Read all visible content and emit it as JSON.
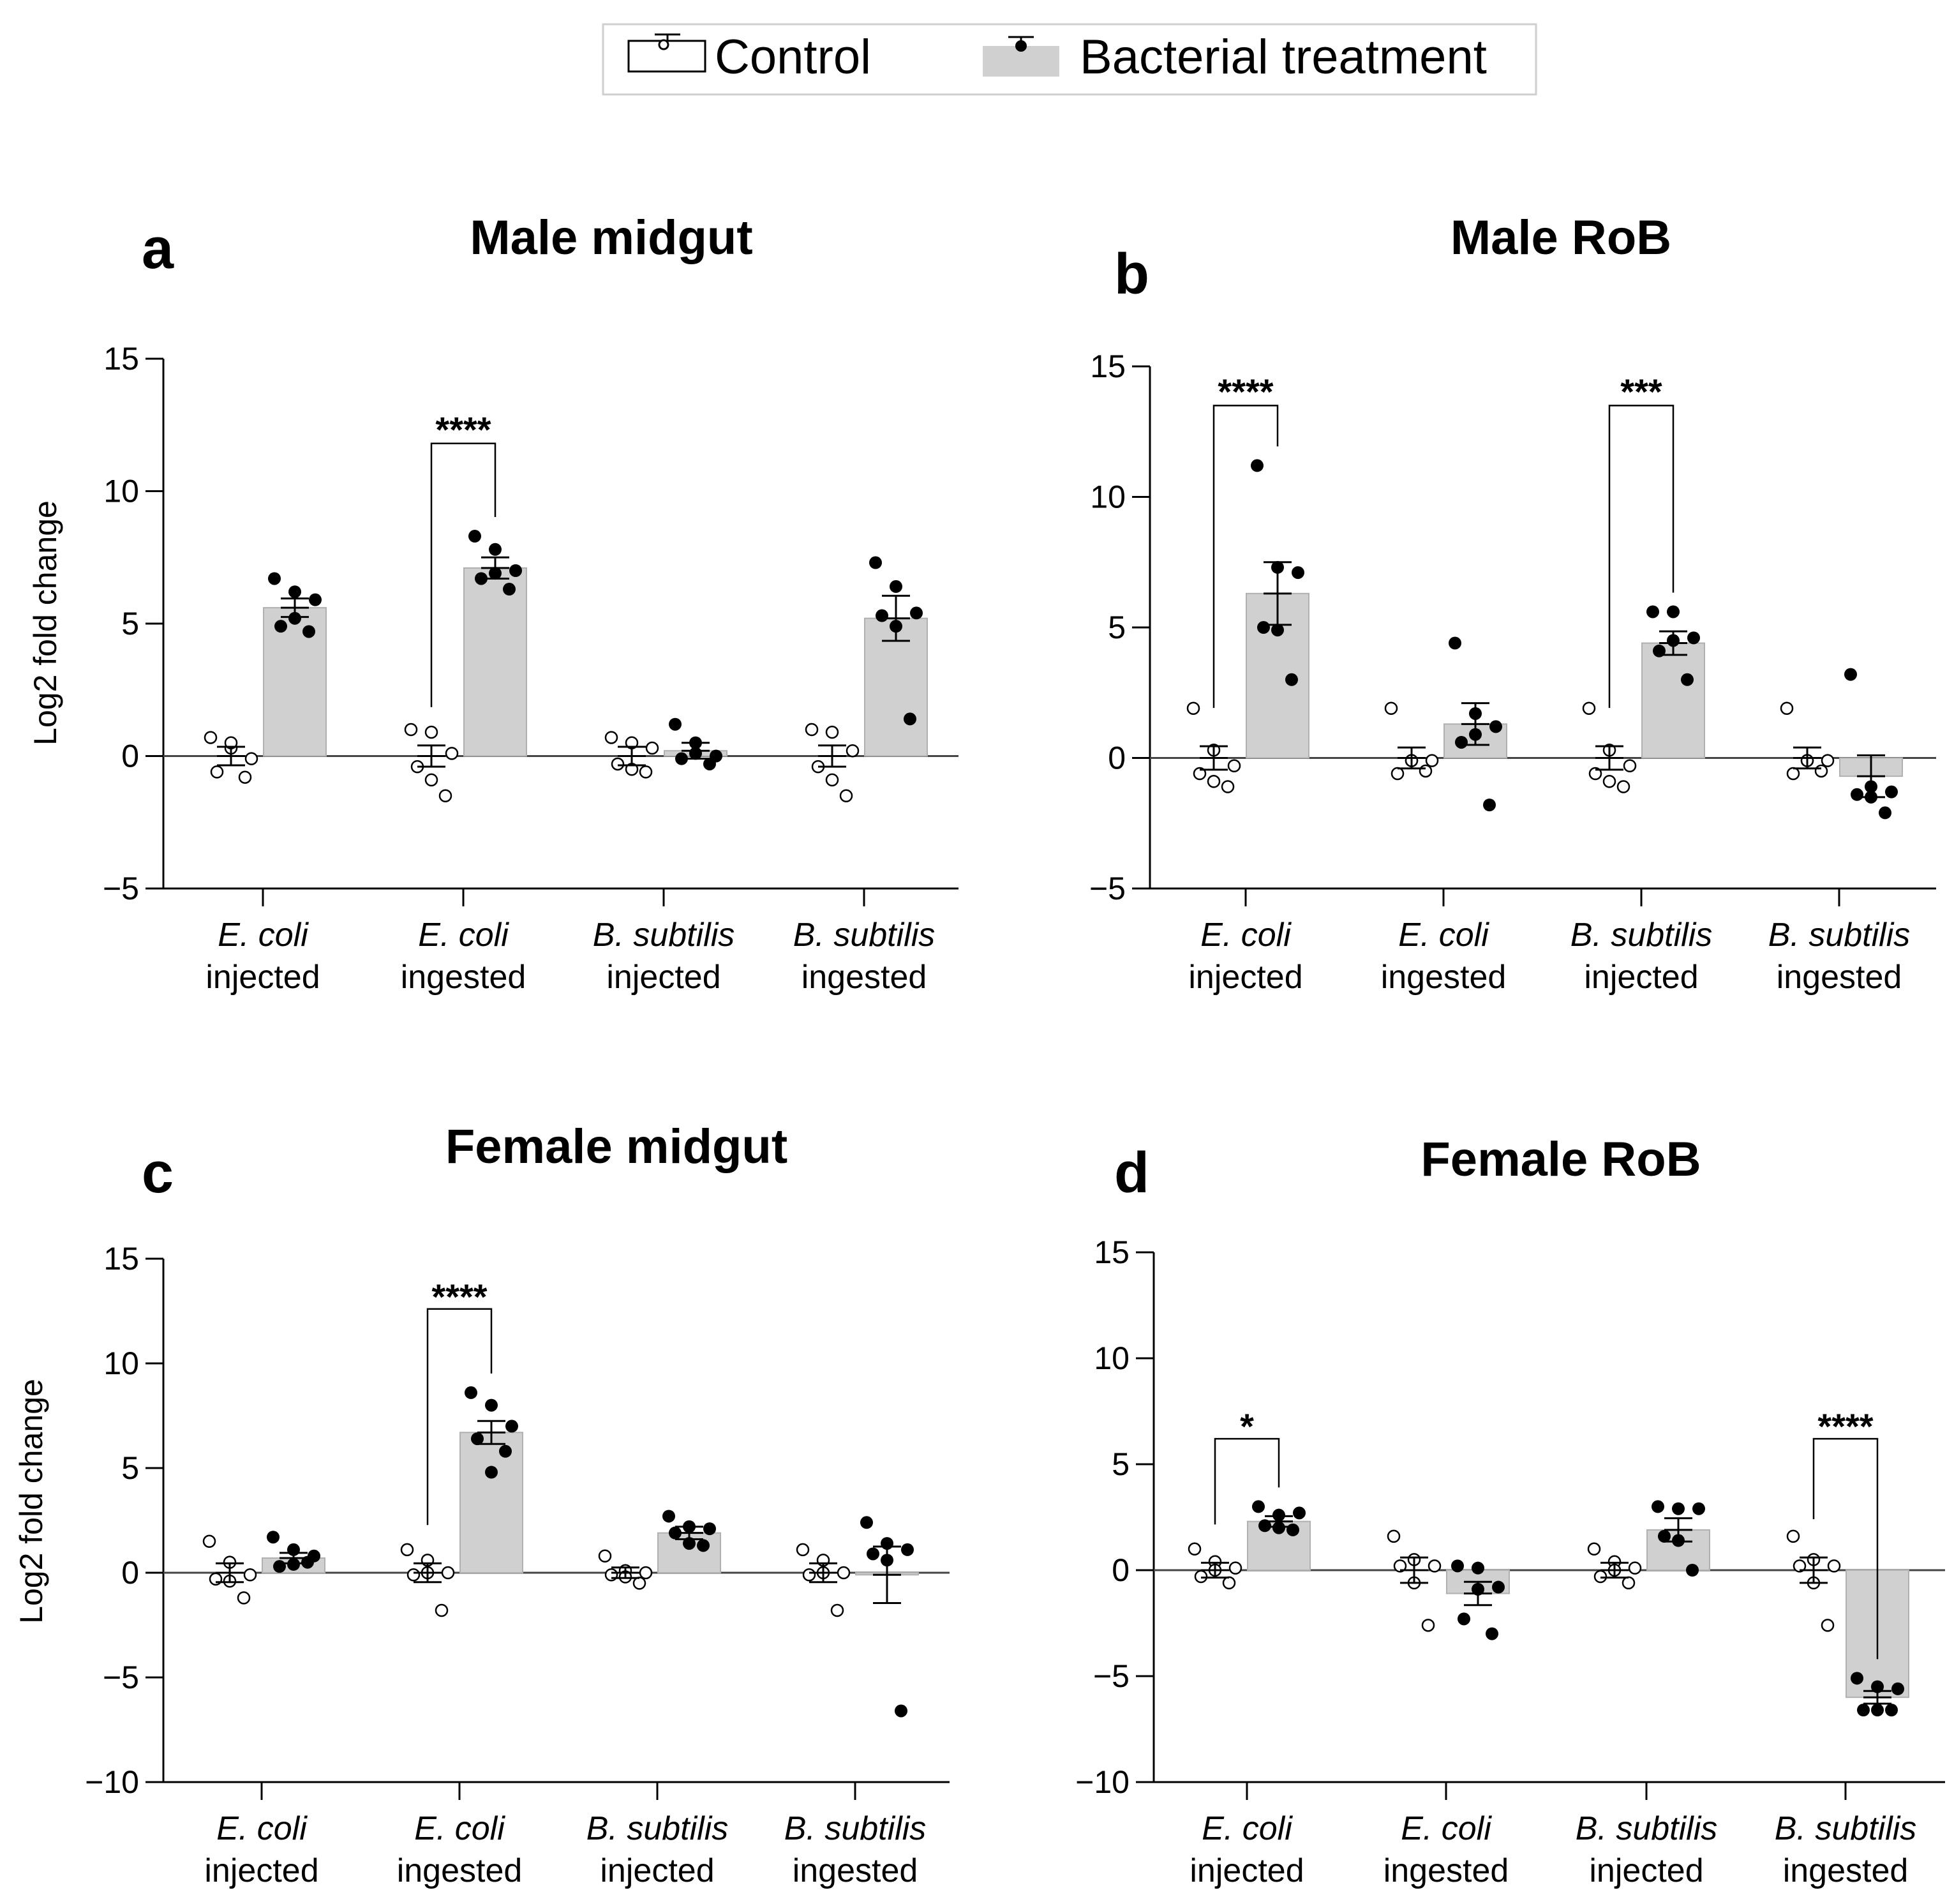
{
  "legend": {
    "items": [
      {
        "label": "Control",
        "marker": "open-circle",
        "fill": "#ffffff"
      },
      {
        "label": "Bacterial treatment",
        "marker": "filled-circle",
        "fill": "#d0d0d0"
      }
    ]
  },
  "colors": {
    "bar_fill": "#d0d0d0",
    "bar_stroke": "#b0b0b0",
    "axis": "#000000",
    "control_fill": "#ffffff",
    "treated_fill": "#000000"
  },
  "chart_data": [
    {
      "type": "bar",
      "panel_label": "a",
      "title": "Male midgut",
      "ylabel": "Log2 fold change",
      "ylim": [
        -5,
        15
      ],
      "yticks": [
        -5,
        0,
        5,
        10,
        15
      ],
      "ytick_labels": [
        "−5",
        "0",
        "5",
        "10",
        "15"
      ],
      "categories": [
        {
          "species": "E. coli",
          "route": "injected"
        },
        {
          "species": "E. coli",
          "route": "ingested"
        },
        {
          "species": "B. subtilis",
          "route": "injected"
        },
        {
          "species": "B. subtilis",
          "route": "ingested"
        }
      ],
      "series": [
        {
          "name": "Control",
          "values": [
            0.0,
            0.0,
            0.0,
            0.0
          ],
          "sem": [
            0.35,
            0.4,
            0.35,
            0.4
          ],
          "points": [
            [
              0.7,
              0.3,
              -0.1,
              -0.6,
              -0.8,
              0.5
            ],
            [
              1.0,
              0.9,
              0.1,
              -0.4,
              -1.5,
              -0.9
            ],
            [
              0.7,
              0.5,
              0.3,
              -0.3,
              -0.6,
              -0.5
            ],
            [
              1.0,
              0.9,
              0.2,
              -0.4,
              -1.5,
              -0.9
            ]
          ]
        },
        {
          "name": "Bacterial treatment",
          "values": [
            5.6,
            7.1,
            0.2,
            5.2
          ],
          "sem": [
            0.35,
            0.4,
            0.3,
            0.85
          ],
          "points": [
            [
              6.7,
              6.2,
              5.9,
              4.9,
              4.7,
              5.2
            ],
            [
              8.3,
              7.8,
              7.0,
              6.7,
              6.3,
              6.9
            ],
            [
              1.2,
              0.5,
              0.0,
              -0.1,
              -0.3,
              0.1
            ],
            [
              7.3,
              6.4,
              5.4,
              5.3,
              1.4,
              4.9
            ]
          ]
        }
      ],
      "significance": [
        {
          "category_index": 1,
          "label": "****",
          "line_y": 11.8,
          "text_y": 12.1
        }
      ]
    },
    {
      "type": "bar",
      "panel_label": "b",
      "title": "Male RoB",
      "ylabel": "",
      "ylim": [
        -5,
        15
      ],
      "yticks": [
        -5,
        0,
        5,
        10,
        15
      ],
      "ytick_labels": [
        "−5",
        "0",
        "5",
        "10",
        "15"
      ],
      "categories": [
        {
          "species": "E. coli",
          "route": "injected"
        },
        {
          "species": "E. coli",
          "route": "ingested"
        },
        {
          "species": "B. subtilis",
          "route": "injected"
        },
        {
          "species": "B. subtilis",
          "route": "ingested"
        }
      ],
      "series": [
        {
          "name": "Control",
          "values": [
            0.0,
            0.0,
            0.0,
            0.0
          ],
          "sem": [
            0.45,
            0.4,
            0.45,
            0.4
          ],
          "points": [
            [
              1.9,
              0.3,
              -0.3,
              -0.6,
              -1.1,
              -0.9
            ],
            [
              1.9,
              -0.1,
              -0.1,
              -0.6,
              -0.5,
              -0.1
            ],
            [
              1.9,
              0.3,
              -0.3,
              -0.6,
              -1.1,
              -0.9
            ],
            [
              1.9,
              -0.1,
              -0.1,
              -0.6,
              -0.5,
              -0.1
            ]
          ]
        },
        {
          "name": "Bacterial treatment",
          "values": [
            6.3,
            1.3,
            4.4,
            -0.7
          ],
          "sem": [
            1.2,
            0.8,
            0.45,
            0.8
          ],
          "points": [
            [
              11.2,
              7.3,
              7.1,
              5.0,
              3.0,
              4.9
            ],
            [
              4.4,
              1.7,
              1.2,
              0.6,
              -1.8,
              0.9
            ],
            [
              5.6,
              5.6,
              4.6,
              4.1,
              3.0,
              4.5
            ],
            [
              3.2,
              -1.1,
              -1.3,
              -1.4,
              -2.1,
              -1.5
            ]
          ]
        }
      ],
      "significance": [
        {
          "category_index": 0,
          "label": "****",
          "line_y": 13.5,
          "text_y": 13.8
        },
        {
          "category_index": 2,
          "label": "***",
          "line_y": 13.5,
          "text_y": 13.8
        }
      ]
    },
    {
      "type": "bar",
      "panel_label": "c",
      "title": "Female midgut",
      "ylabel": "Log2 fold change",
      "ylim": [
        -10,
        15
      ],
      "yticks": [
        -10,
        -5,
        0,
        5,
        10,
        15
      ],
      "ytick_labels": [
        "−10",
        "−5",
        "0",
        "5",
        "10",
        "15"
      ],
      "categories": [
        {
          "species": "E. coli",
          "route": "injected"
        },
        {
          "species": "E. coli",
          "route": "ingested"
        },
        {
          "species": "B. subtilis",
          "route": "injected"
        },
        {
          "species": "B. subtilis",
          "route": "ingested"
        }
      ],
      "series": [
        {
          "name": "Control",
          "values": [
            0.0,
            0.0,
            0.0,
            0.0
          ],
          "sem": [
            0.45,
            0.45,
            0.25,
            0.45
          ],
          "points": [
            [
              1.5,
              0.5,
              -0.1,
              -0.3,
              -1.2,
              -0.4
            ],
            [
              1.1,
              0.6,
              0.0,
              -0.1,
              -1.8,
              0.0
            ],
            [
              0.8,
              0.1,
              0.0,
              -0.1,
              -0.5,
              -0.2
            ],
            [
              1.1,
              0.6,
              0.0,
              -0.1,
              -1.8,
              0.0
            ]
          ]
        },
        {
          "name": "Bacterial treatment",
          "values": [
            0.7,
            6.7,
            1.9,
            -0.1
          ],
          "sem": [
            0.25,
            0.55,
            0.3,
            1.35
          ],
          "points": [
            [
              1.7,
              1.1,
              0.8,
              0.3,
              0.5,
              0.4
            ],
            [
              8.6,
              8.0,
              7.0,
              6.4,
              5.8,
              4.8
            ],
            [
              2.7,
              2.2,
              2.1,
              1.9,
              1.3,
              1.4
            ],
            [
              2.4,
              1.4,
              1.1,
              0.9,
              -6.6,
              0.6
            ]
          ]
        }
      ],
      "significance": [
        {
          "category_index": 1,
          "label": "****",
          "line_y": 12.6,
          "text_y": 12.9
        }
      ]
    },
    {
      "type": "bar",
      "panel_label": "d",
      "title": "Female RoB",
      "ylabel": "",
      "ylim": [
        -10,
        15
      ],
      "yticks": [
        -10,
        -5,
        0,
        5,
        10,
        15
      ],
      "ytick_labels": [
        "−10",
        "−5",
        "0",
        "5",
        "10",
        "15"
      ],
      "categories": [
        {
          "species": "E. coli",
          "route": "injected"
        },
        {
          "species": "E. coli",
          "route": "ingested"
        },
        {
          "species": "B. subtilis",
          "route": "injected"
        },
        {
          "species": "B. subtilis",
          "route": "ingested"
        }
      ],
      "series": [
        {
          "name": "Control",
          "values": [
            0.0,
            0.0,
            0.0,
            0.0
          ],
          "sem": [
            0.35,
            0.6,
            0.35,
            0.6
          ],
          "points": [
            [
              1.0,
              0.4,
              0.1,
              -0.3,
              -0.6,
              0.0
            ],
            [
              1.6,
              0.5,
              0.2,
              0.2,
              -2.6,
              -0.6
            ],
            [
              1.0,
              0.4,
              0.1,
              -0.3,
              -0.6,
              0.0
            ],
            [
              1.6,
              0.5,
              0.2,
              0.2,
              -2.6,
              -0.6
            ]
          ]
        },
        {
          "name": "Bacterial treatment",
          "values": [
            2.3,
            -1.1,
            1.9,
            -6.0
          ],
          "sem": [
            0.25,
            0.55,
            0.55,
            0.3
          ],
          "points": [
            [
              3.0,
              2.6,
              2.7,
              2.1,
              1.9,
              2.0
            ],
            [
              0.2,
              0.1,
              -0.8,
              -2.3,
              -3.0,
              -0.9
            ],
            [
              3.0,
              2.9,
              2.9,
              1.6,
              0.0,
              1.4
            ],
            [
              -5.1,
              -5.5,
              -5.6,
              -6.6,
              -6.6,
              -6.6
            ]
          ]
        }
      ],
      "significance": [
        {
          "category_index": 0,
          "label": "*",
          "line_y": 6.2,
          "text_y": 6.5
        },
        {
          "category_index": 3,
          "label": "****",
          "line_y": 6.2,
          "text_y": 6.5
        }
      ]
    }
  ]
}
